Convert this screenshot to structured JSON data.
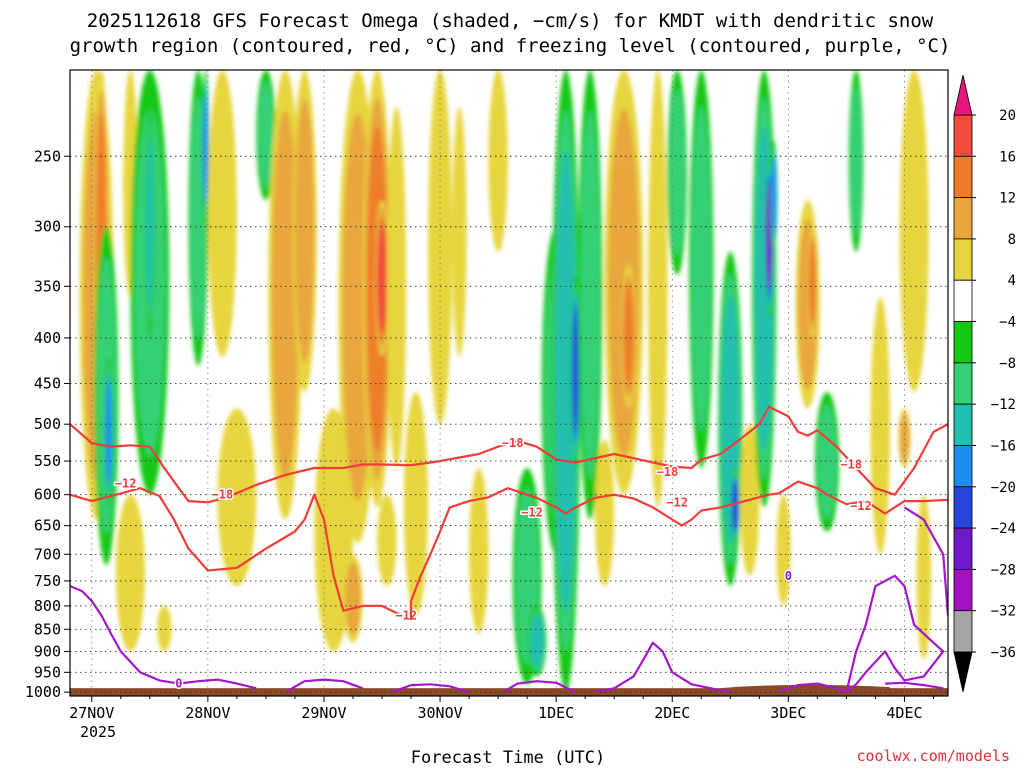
{
  "chart_data": {
    "type": "heatmap",
    "title_line1": "2025112618 GFS Forecast Omega (shaded, −cm/s) for KMDT with dendritic snow",
    "title_line2": "growth region (contoured, red, °C) and freezing level (contoured, purple, °C)",
    "xlabel": "Forecast Time (UTC)",
    "credit": "coolwx.com/models",
    "x_tick_labels": [
      "27NOV",
      "28NOV",
      "29NOV",
      "30NOV",
      "1DEC",
      "2DEC",
      "3DEC",
      "4DEC"
    ],
    "x_year_label": "2025",
    "x_range_hours": [
      -4.5,
      177
    ],
    "y_tick_labels": [
      "250",
      "300",
      "350",
      "400",
      "450",
      "500",
      "550",
      "600",
      "650",
      "700",
      "750",
      "800",
      "850",
      "900",
      "950",
      "1000"
    ],
    "y_range_hpa": [
      200,
      1010
    ],
    "grid": true,
    "colorbar": {
      "tick_labels": [
        "20",
        "16",
        "12",
        "8",
        "4",
        "−4",
        "−8",
        "−12",
        "−16",
        "−20",
        "−24",
        "−28",
        "−32",
        "−36"
      ],
      "bins": [
        {
          "from": 20,
          "to": 24,
          "color": "#e8167d"
        },
        {
          "from": 16,
          "to": 20,
          "color": "#f24a3c"
        },
        {
          "from": 12,
          "to": 16,
          "color": "#ee7d2b"
        },
        {
          "from": 8,
          "to": 12,
          "color": "#e8a63c"
        },
        {
          "from": 4,
          "to": 8,
          "color": "#e6d53e"
        },
        {
          "from": -4,
          "to": 4,
          "color": "#ffffff"
        },
        {
          "from": -8,
          "to": -4,
          "color": "#14c814"
        },
        {
          "from": -12,
          "to": -8,
          "color": "#34d074"
        },
        {
          "from": -16,
          "to": -12,
          "color": "#20bfae"
        },
        {
          "from": -20,
          "to": -16,
          "color": "#1e8ef0"
        },
        {
          "from": -24,
          "to": -20,
          "color": "#2846dc"
        },
        {
          "from": -28,
          "to": -24,
          "color": "#7019c8"
        },
        {
          "from": -32,
          "to": -28,
          "color": "#a313c4"
        },
        {
          "from": -36,
          "to": -32,
          "color": "#a6a6a6"
        },
        {
          "from": -40,
          "to": -36,
          "color": "#000000"
        }
      ]
    },
    "omega_features": [
      {
        "t": 1,
        "p_top": 200,
        "p_bot": 640,
        "w": 7,
        "v": 8
      },
      {
        "t": 2,
        "p_top": 200,
        "p_bot": 470,
        "w": 3,
        "v": 14
      },
      {
        "t": 3,
        "p_top": 300,
        "p_bot": 720,
        "w": 5,
        "v": -10
      },
      {
        "t": 3.5,
        "p_top": 420,
        "p_bot": 620,
        "w": 2,
        "v": -18
      },
      {
        "t": 8,
        "p_top": 200,
        "p_bot": 360,
        "w": 3,
        "v": 6
      },
      {
        "t": 8,
        "p_top": 600,
        "p_bot": 900,
        "w": 6,
        "v": 6
      },
      {
        "t": 12,
        "p_top": 200,
        "p_bot": 600,
        "w": 8,
        "v": -8
      },
      {
        "t": 12,
        "p_top": 220,
        "p_bot": 400,
        "w": 2,
        "v": -14
      },
      {
        "t": 15,
        "p_top": 800,
        "p_bot": 900,
        "w": 3,
        "v": 6
      },
      {
        "t": 22,
        "p_top": 200,
        "p_bot": 430,
        "w": 4,
        "v": -10
      },
      {
        "t": 23.5,
        "p_top": 200,
        "p_bot": 300,
        "w": 1.5,
        "v": -18
      },
      {
        "t": 27,
        "p_top": 200,
        "p_bot": 420,
        "w": 6,
        "v": 5
      },
      {
        "t": 30,
        "p_top": 480,
        "p_bot": 760,
        "w": 8,
        "v": 6
      },
      {
        "t": 36,
        "p_top": 200,
        "p_bot": 280,
        "w": 4,
        "v": -8
      },
      {
        "t": 40,
        "p_top": 200,
        "p_bot": 640,
        "w": 7,
        "v": 9
      },
      {
        "t": 44,
        "p_top": 200,
        "p_bot": 460,
        "w": 5,
        "v": 10
      },
      {
        "t": 50,
        "p_top": 480,
        "p_bot": 900,
        "w": 8,
        "v": 5
      },
      {
        "t": 54,
        "p_top": 700,
        "p_bot": 880,
        "w": 4,
        "v": 9
      },
      {
        "t": 55,
        "p_top": 200,
        "p_bot": 680,
        "w": 8,
        "v": 9
      },
      {
        "t": 59,
        "p_top": 200,
        "p_bot": 620,
        "w": 6,
        "v": 12
      },
      {
        "t": 60,
        "p_top": 280,
        "p_bot": 420,
        "w": 3,
        "v": 19
      },
      {
        "t": 61,
        "p_top": 600,
        "p_bot": 760,
        "w": 4,
        "v": 6
      },
      {
        "t": 63,
        "p_top": 220,
        "p_bot": 560,
        "w": 4,
        "v": 6
      },
      {
        "t": 67,
        "p_top": 460,
        "p_bot": 820,
        "w": 5,
        "v": 5
      },
      {
        "t": 72,
        "p_top": 200,
        "p_bot": 500,
        "w": 5,
        "v": 5
      },
      {
        "t": 76,
        "p_top": 220,
        "p_bot": 420,
        "w": 3,
        "v": 5
      },
      {
        "t": 80,
        "p_top": 560,
        "p_bot": 860,
        "w": 4,
        "v": 6
      },
      {
        "t": 84,
        "p_top": 200,
        "p_bot": 320,
        "w": 4,
        "v": 5
      },
      {
        "t": 90,
        "p_top": 560,
        "p_bot": 980,
        "w": 6,
        "v": -10
      },
      {
        "t": 92,
        "p_top": 800,
        "p_bot": 960,
        "w": 4,
        "v": -14
      },
      {
        "t": 96,
        "p_top": 300,
        "p_bot": 700,
        "w": 6,
        "v": -8
      },
      {
        "t": 98,
        "p_top": 200,
        "p_bot": 1000,
        "w": 6,
        "v": -14
      },
      {
        "t": 100,
        "p_top": 340,
        "p_bot": 560,
        "w": 2,
        "v": -22
      },
      {
        "t": 103,
        "p_top": 200,
        "p_bot": 640,
        "w": 5,
        "v": -9
      },
      {
        "t": 106,
        "p_top": 520,
        "p_bot": 760,
        "w": 4,
        "v": 6
      },
      {
        "t": 110,
        "p_top": 200,
        "p_bot": 600,
        "w": 8,
        "v": 8
      },
      {
        "t": 111,
        "p_top": 330,
        "p_bot": 480,
        "w": 3,
        "v": 14
      },
      {
        "t": 117,
        "p_top": 200,
        "p_bot": 620,
        "w": 4,
        "v": 6
      },
      {
        "t": 121,
        "p_top": 200,
        "p_bot": 340,
        "w": 4,
        "v": -8
      },
      {
        "t": 126,
        "p_top": 200,
        "p_bot": 560,
        "w": 5,
        "v": -8
      },
      {
        "t": 132,
        "p_top": 320,
        "p_bot": 760,
        "w": 5,
        "v": -12
      },
      {
        "t": 133,
        "p_top": 560,
        "p_bot": 680,
        "w": 2,
        "v": -22
      },
      {
        "t": 136,
        "p_top": 500,
        "p_bot": 740,
        "w": 4,
        "v": 6
      },
      {
        "t": 139,
        "p_top": 200,
        "p_bot": 620,
        "w": 5,
        "v": -12
      },
      {
        "t": 140,
        "p_top": 250,
        "p_bot": 380,
        "w": 2,
        "v": -24
      },
      {
        "t": 141,
        "p_top": 240,
        "p_bot": 320,
        "w": 1.5,
        "v": -18
      },
      {
        "t": 143,
        "p_top": 600,
        "p_bot": 800,
        "w": 3,
        "v": 6
      },
      {
        "t": 148,
        "p_top": 280,
        "p_bot": 480,
        "w": 5,
        "v": 10
      },
      {
        "t": 149,
        "p_top": 300,
        "p_bot": 400,
        "w": 2,
        "v": 14
      },
      {
        "t": 152,
        "p_top": 460,
        "p_bot": 660,
        "w": 5,
        "v": -8
      },
      {
        "t": 158,
        "p_top": 200,
        "p_bot": 320,
        "w": 3,
        "v": -8
      },
      {
        "t": 163,
        "p_top": 360,
        "p_bot": 700,
        "w": 4,
        "v": 6
      },
      {
        "t": 168,
        "p_top": 480,
        "p_bot": 560,
        "w": 2.5,
        "v": 11
      },
      {
        "t": 170,
        "p_top": 200,
        "p_bot": 460,
        "w": 6,
        "v": 5
      },
      {
        "t": 172,
        "p_top": 600,
        "p_bot": 920,
        "w": 3,
        "v": 5
      }
    ],
    "contours_dgz_minus12": [
      {
        "label": "−12",
        "label_t": 7,
        "label_p": 583,
        "label_t2": 65,
        "label_p2": 820,
        "points": [
          [
            -4.5,
            600
          ],
          [
            0,
            610
          ],
          [
            6,
            598
          ],
          [
            10,
            590
          ],
          [
            14,
            602
          ],
          [
            17,
            640
          ],
          [
            20,
            690
          ],
          [
            24,
            730
          ],
          [
            30,
            725
          ],
          [
            36,
            690
          ],
          [
            42,
            660
          ],
          [
            44,
            640
          ],
          [
            46,
            600
          ],
          [
            48,
            640
          ],
          [
            50,
            740
          ],
          [
            52,
            810
          ],
          [
            56,
            800
          ],
          [
            60,
            800
          ],
          [
            64,
            820
          ],
          [
            66,
            830
          ]
        ]
      },
      {
        "label": "−12",
        "label_t2": 91,
        "label_p2": 628,
        "label_t3": 121,
        "label_p3": 612,
        "label_t4": 159,
        "label_p4": 618,
        "points": [
          [
            66,
            830
          ],
          [
            66,
            790
          ],
          [
            68,
            740
          ],
          [
            70,
            700
          ],
          [
            72,
            660
          ],
          [
            74,
            620
          ],
          [
            78,
            610
          ],
          [
            82,
            604
          ],
          [
            86,
            590
          ],
          [
            92,
            605
          ],
          [
            96,
            620
          ],
          [
            98,
            630
          ],
          [
            100,
            620
          ],
          [
            104,
            605
          ],
          [
            108,
            600
          ],
          [
            112,
            606
          ],
          [
            116,
            620
          ],
          [
            120,
            640
          ],
          [
            122,
            650
          ],
          [
            124,
            640
          ],
          [
            126,
            625
          ],
          [
            130,
            620
          ],
          [
            134,
            612
          ],
          [
            136,
            608
          ],
          [
            140,
            600
          ],
          [
            142,
            598
          ],
          [
            146,
            580
          ],
          [
            150,
            590
          ],
          [
            152,
            600
          ],
          [
            156,
            615
          ],
          [
            160,
            610
          ],
          [
            164,
            630
          ],
          [
            168,
            610
          ],
          [
            172,
            610
          ],
          [
            177,
            608
          ]
        ]
      }
    ],
    "contours_dgz_minus18": [
      {
        "label": "−18",
        "label_t": 27,
        "label_p": 600,
        "label_t2": 87,
        "label_p2": 525,
        "label_t3": 119,
        "label_p3": 566,
        "label_t4": 157,
        "label_p4": 555,
        "points": [
          [
            -4.5,
            500
          ],
          [
            0,
            525
          ],
          [
            4,
            530
          ],
          [
            8,
            528
          ],
          [
            12,
            530
          ],
          [
            15,
            560
          ],
          [
            18,
            590
          ],
          [
            20,
            610
          ],
          [
            24,
            612
          ],
          [
            28,
            604
          ],
          [
            34,
            585
          ],
          [
            40,
            570
          ],
          [
            46,
            560
          ],
          [
            52,
            560
          ],
          [
            56,
            555
          ],
          [
            60,
            555
          ],
          [
            66,
            556
          ],
          [
            70,
            552
          ],
          [
            72,
            550
          ],
          [
            76,
            545
          ],
          [
            80,
            540
          ],
          [
            84,
            530
          ],
          [
            88,
            522
          ],
          [
            92,
            530
          ],
          [
            96,
            548
          ],
          [
            100,
            552
          ],
          [
            104,
            546
          ],
          [
            108,
            540
          ],
          [
            112,
            546
          ],
          [
            116,
            552
          ],
          [
            120,
            558
          ],
          [
            124,
            560
          ],
          [
            126,
            548
          ],
          [
            130,
            540
          ],
          [
            134,
            520
          ],
          [
            138,
            500
          ],
          [
            140,
            478
          ],
          [
            144,
            490
          ],
          [
            146,
            510
          ],
          [
            148,
            515
          ],
          [
            150,
            508
          ],
          [
            154,
            530
          ],
          [
            158,
            560
          ],
          [
            162,
            590
          ],
          [
            166,
            600
          ],
          [
            170,
            560
          ],
          [
            174,
            510
          ],
          [
            177,
            500
          ]
        ]
      }
    ],
    "contours_freezing_0": [
      {
        "label": "0",
        "label_t": 18,
        "label_p": 978,
        "points": [
          [
            -4.5,
            760
          ],
          [
            -2,
            770
          ],
          [
            0,
            790
          ],
          [
            2,
            820
          ],
          [
            4,
            860
          ],
          [
            6,
            900
          ],
          [
            10,
            950
          ],
          [
            14,
            970
          ],
          [
            18,
            978
          ],
          [
            22,
            972
          ],
          [
            26,
            968
          ],
          [
            30,
            978
          ],
          [
            34,
            990
          ]
        ]
      },
      {
        "points": [
          [
            40,
            1000
          ],
          [
            44,
            972
          ],
          [
            48,
            968
          ],
          [
            52,
            972
          ],
          [
            56,
            990
          ]
        ]
      },
      {
        "points": [
          [
            62,
            1000
          ],
          [
            66,
            982
          ],
          [
            70,
            980
          ],
          [
            74,
            985
          ],
          [
            78,
            1000
          ]
        ]
      },
      {
        "points": [
          [
            85,
            1000
          ],
          [
            88,
            978
          ],
          [
            92,
            972
          ],
          [
            96,
            976
          ],
          [
            100,
            1000
          ]
        ]
      },
      {
        "points": [
          [
            104,
            998
          ],
          [
            108,
            990
          ],
          [
            112,
            960
          ],
          [
            114,
            920
          ],
          [
            116,
            880
          ],
          [
            118,
            900
          ],
          [
            120,
            950
          ],
          [
            124,
            980
          ],
          [
            128,
            990
          ],
          [
            132,
            1000
          ]
        ]
      },
      {
        "points": [
          [
            142,
            998
          ],
          [
            146,
            982
          ],
          [
            150,
            978
          ],
          [
            154,
            990
          ],
          [
            156,
            1000
          ]
        ]
      },
      {
        "label": "0",
        "label_t": 144,
        "label_p": 740,
        "points": [
          [
            156,
            1000
          ],
          [
            158,
            900
          ],
          [
            160,
            840
          ],
          [
            162,
            760
          ],
          [
            166,
            740
          ],
          [
            168,
            760
          ],
          [
            170,
            840
          ],
          [
            174,
            880
          ],
          [
            176,
            900
          ],
          [
            172,
            960
          ],
          [
            168,
            970
          ],
          [
            166,
            940
          ],
          [
            164,
            900
          ],
          [
            160,
            950
          ],
          [
            158,
            980
          ],
          [
            156,
            1000
          ]
        ]
      },
      {
        "points": [
          [
            164,
            978
          ],
          [
            168,
            976
          ],
          [
            172,
            982
          ],
          [
            176,
            990
          ]
        ]
      },
      {
        "points": [
          [
            168,
            620
          ],
          [
            172,
            640
          ],
          [
            176,
            700
          ],
          [
            177,
            820
          ]
        ]
      }
    ]
  }
}
